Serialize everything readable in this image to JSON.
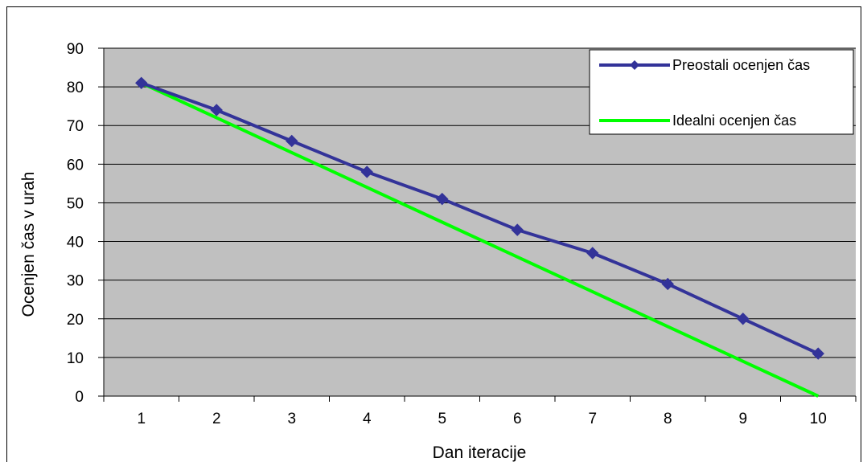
{
  "chart_data": {
    "type": "line",
    "title": "",
    "xlabel": "Dan iteracije",
    "ylabel": "Ocenjen čas v urah",
    "categories": [
      "1",
      "2",
      "3",
      "4",
      "5",
      "6",
      "7",
      "8",
      "9",
      "10"
    ],
    "ylim": [
      0,
      90
    ],
    "y_ticks": [
      0,
      10,
      20,
      30,
      40,
      50,
      60,
      70,
      80,
      90
    ],
    "grid": "horizontal",
    "legend_position": "top-right",
    "plot_background": "#c0c0c0",
    "series": [
      {
        "name": "Preostali ocenjen čas",
        "color": "#333399",
        "marker": "diamond",
        "values": [
          81,
          74,
          66,
          58,
          51,
          43,
          37,
          29,
          20,
          11
        ]
      },
      {
        "name": "Idealni ocenjen čas",
        "color": "#00ff00",
        "marker": "none",
        "values": [
          81,
          72,
          63,
          54,
          45,
          36,
          27,
          18,
          9,
          0
        ]
      }
    ]
  }
}
